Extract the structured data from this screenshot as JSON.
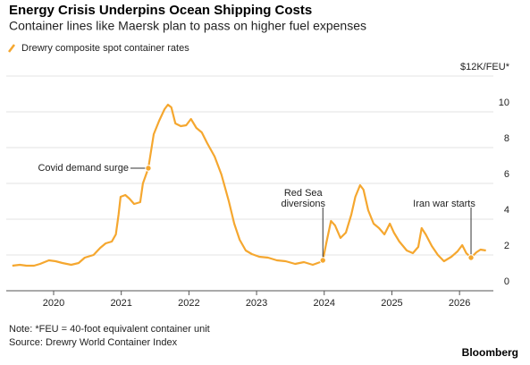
{
  "chart_data": {
    "type": "line",
    "title": "Energy Crisis Underpins Ocean Shipping Costs",
    "subtitle": "Container lines like Maersk plan to pass on higher fuel expenses",
    "x": [
      2019.39,
      2019.5,
      2019.6,
      2019.71,
      2019.8,
      2019.93,
      2020.03,
      2020.13,
      2020.26,
      2020.37,
      2020.46,
      2020.59,
      2020.69,
      2020.77,
      2020.86,
      2020.92,
      2020.96,
      2020.99,
      2021.06,
      2021.12,
      2021.19,
      2021.28,
      2021.32,
      2021.4,
      2021.48,
      2021.56,
      2021.64,
      2021.69,
      2021.74,
      2021.8,
      2021.88,
      2021.96,
      2022.03,
      2022.11,
      2022.19,
      2022.27,
      2022.38,
      2022.48,
      2022.59,
      2022.67,
      2022.75,
      2022.84,
      2022.93,
      2023.04,
      2023.17,
      2023.3,
      2023.43,
      2023.57,
      2023.7,
      2023.83,
      2023.94,
      2023.98,
      2024.03,
      2024.1,
      2024.16,
      2024.24,
      2024.32,
      2024.4,
      2024.46,
      2024.53,
      2024.58,
      2024.65,
      2024.73,
      2024.81,
      2024.89,
      2024.97,
      2025.03,
      2025.11,
      2025.22,
      2025.31,
      2025.39,
      2025.44,
      2025.5,
      2025.59,
      2025.68,
      2025.77,
      2025.88,
      2025.97,
      2026.04,
      2026.1,
      2026.17,
      2026.25,
      2026.31,
      2026.39
    ],
    "series": [
      {
        "name": "Drewry composite spot container rates",
        "color": "#f5a72f",
        "values": [
          1.4,
          1.45,
          1.4,
          1.4,
          1.5,
          1.7,
          1.65,
          1.55,
          1.45,
          1.55,
          1.85,
          2.0,
          2.4,
          2.65,
          2.75,
          3.15,
          4.25,
          5.25,
          5.35,
          5.15,
          4.85,
          4.95,
          6.0,
          6.85,
          8.75,
          9.5,
          10.15,
          10.4,
          10.25,
          9.35,
          9.2,
          9.25,
          9.6,
          9.1,
          8.85,
          8.25,
          7.5,
          6.5,
          5.0,
          3.75,
          2.85,
          2.25,
          2.05,
          1.9,
          1.85,
          1.7,
          1.65,
          1.5,
          1.6,
          1.45,
          1.6,
          1.7,
          2.65,
          3.9,
          3.65,
          2.95,
          3.25,
          4.25,
          5.25,
          5.9,
          5.65,
          4.5,
          3.75,
          3.5,
          3.15,
          3.75,
          3.25,
          2.75,
          2.25,
          2.1,
          2.45,
          3.5,
          3.15,
          2.5,
          2.0,
          1.65,
          1.9,
          2.2,
          2.55,
          2.1,
          1.85,
          2.15,
          2.3,
          2.25
        ]
      }
    ],
    "xlim": [
      2019.3,
      2026.5
    ],
    "xticks": [
      2020,
      2021,
      2022,
      2023,
      2024,
      2025,
      2026
    ],
    "ylim": [
      0,
      12
    ],
    "yticks": [
      0,
      2,
      4,
      6,
      8,
      10,
      {
        "value": 12,
        "label": "$12K/FEU*"
      }
    ],
    "grid": true,
    "annotations": [
      {
        "lines": [
          "Covid demand surge"
        ],
        "x": 2021.4,
        "y": 6.85
      },
      {
        "lines": [
          "Red Sea",
          "diversions"
        ],
        "x": 2023.98,
        "y": 1.7
      },
      {
        "lines": [
          "Iran war starts"
        ],
        "x": 2026.17,
        "y": 1.85
      }
    ],
    "note": "Note: *FEU = 40-foot equivalent container unit",
    "source": "Source: Drewry World Container Index",
    "brand": "Bloomberg"
  }
}
